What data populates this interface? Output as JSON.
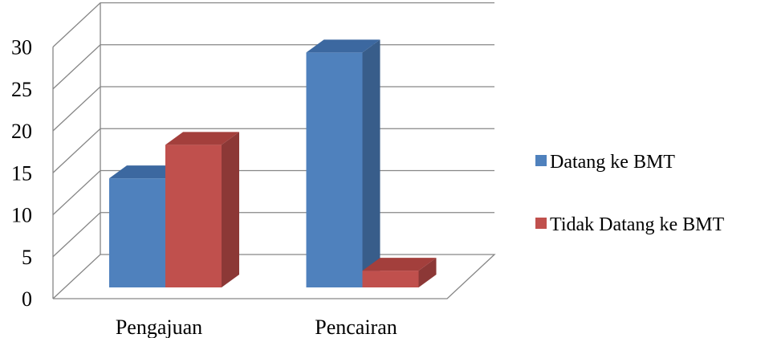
{
  "chart_data": {
    "type": "bar",
    "categories": [
      "Pengajuan",
      "Pencairan"
    ],
    "series": [
      {
        "name": "Datang ke BMT",
        "values": [
          13,
          28
        ],
        "color": "#4F81BD",
        "side_color": "#385D8A",
        "top_color": "#3C68A0"
      },
      {
        "name": "Tidak Datang ke BMT",
        "values": [
          17,
          2
        ],
        "color": "#C0504D",
        "side_color": "#8C3836",
        "top_color": "#A33F3C"
      }
    ],
    "yticks": [
      "0",
      "5",
      "10",
      "15",
      "20",
      "25",
      "30"
    ],
    "ylim": [
      0,
      30
    ],
    "title": "",
    "xlabel": "",
    "ylabel": "",
    "grid": true,
    "legend_position": "right",
    "style": "3d-clustered-column"
  }
}
